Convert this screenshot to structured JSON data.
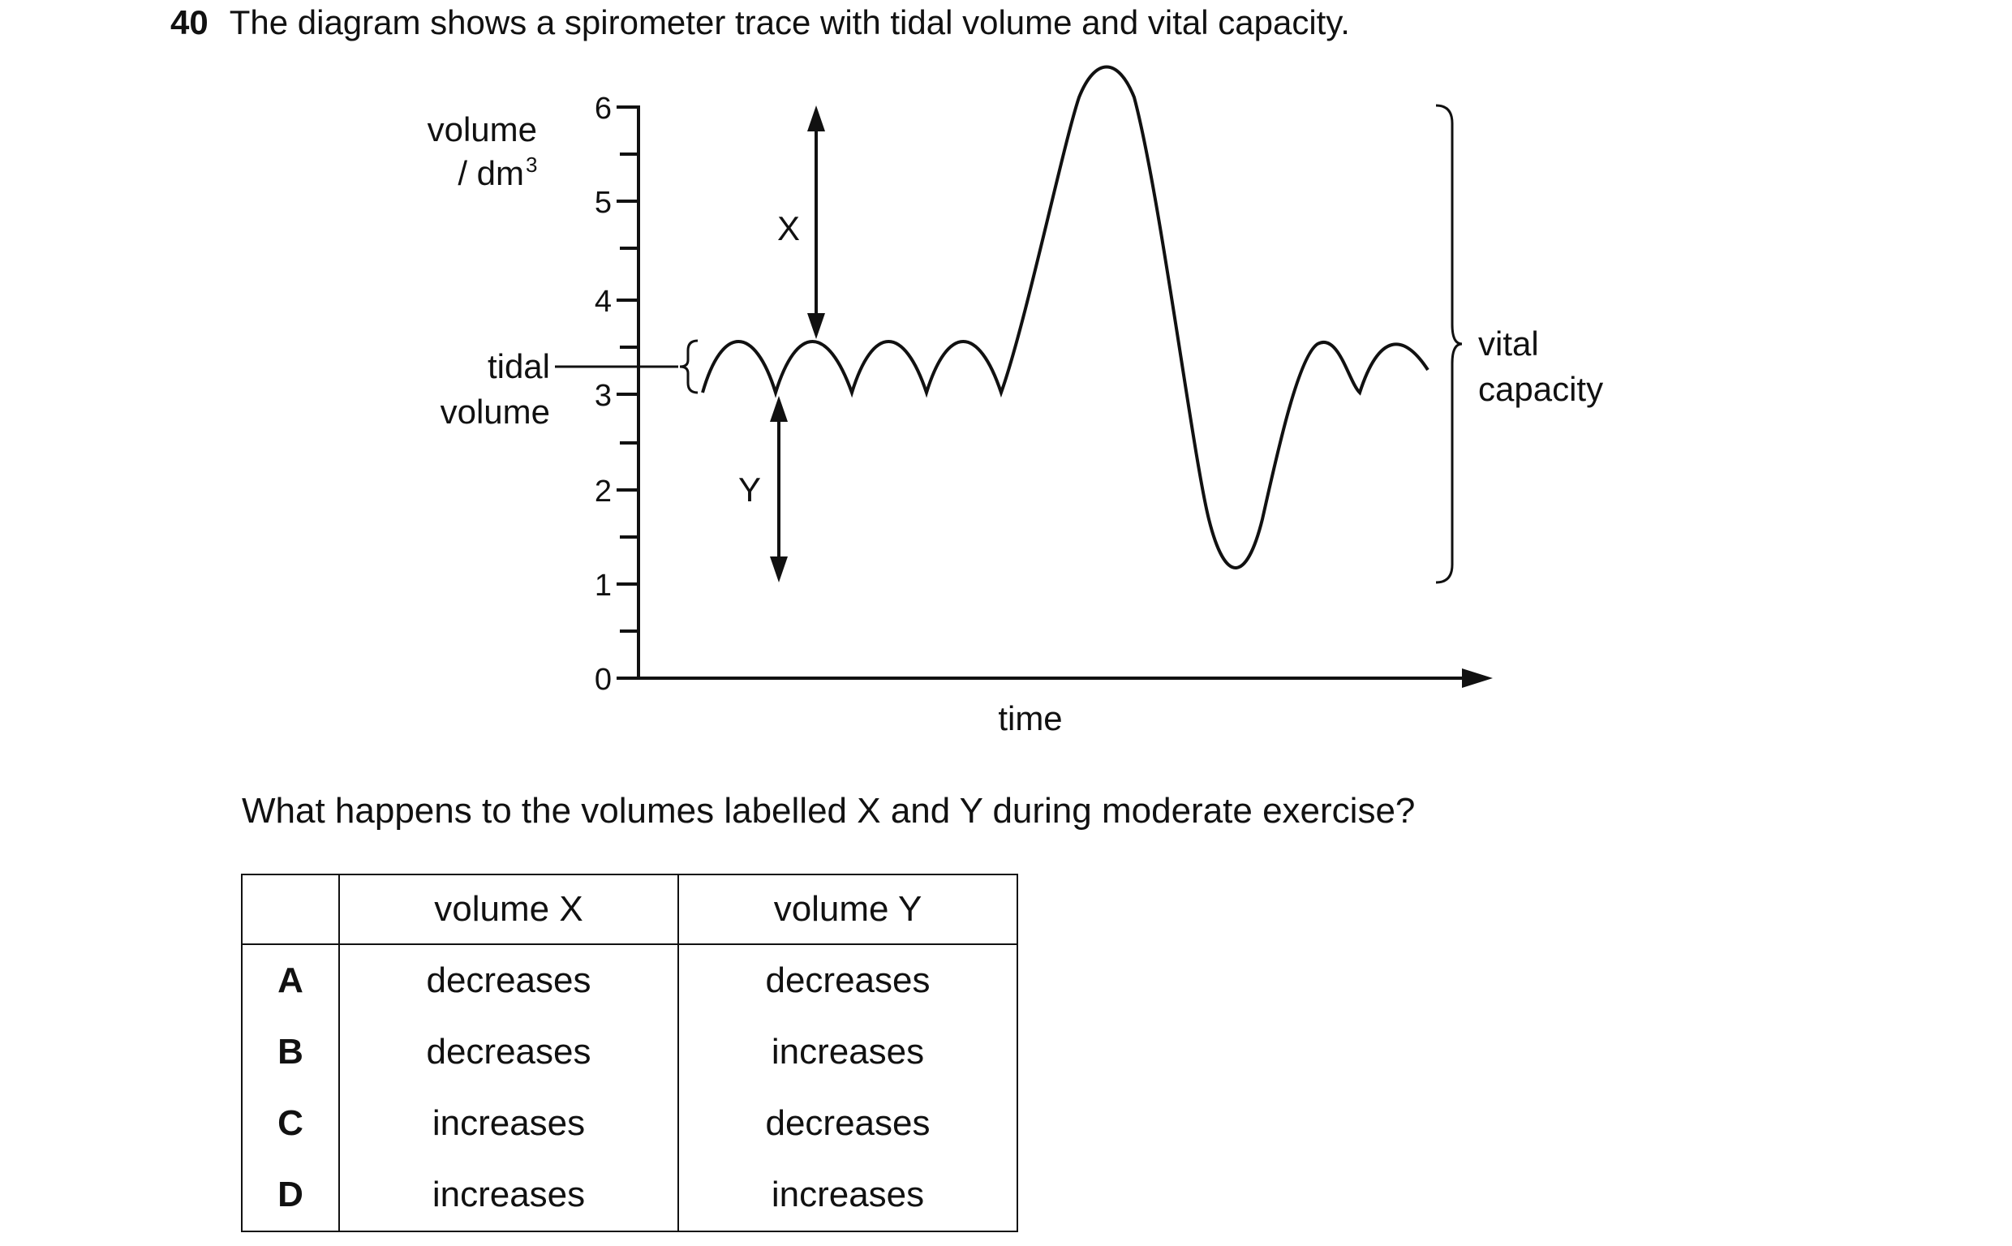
{
  "question": {
    "number": "40",
    "text": "The diagram shows a spirometer trace with tidal volume and vital capacity.",
    "prompt": "What happens to the volumes labelled X and Y during moderate exercise?"
  },
  "diagram": {
    "y_axis_label_line1": "volume",
    "y_axis_label_line2": "/ dm",
    "y_axis_label_sup": "3",
    "y_ticks": [
      "0",
      "1",
      "2",
      "3",
      "4",
      "5",
      "6"
    ],
    "x_axis_label": "time",
    "tidal_label_line1": "tidal",
    "tidal_label_line2": "volume",
    "vital_label_line1": "vital",
    "vital_label_line2": "capacity",
    "label_x": "X",
    "label_y": "Y"
  },
  "table": {
    "headers": [
      "",
      "volume X",
      "volume Y"
    ],
    "rows": [
      {
        "key": "A",
        "x": "decreases",
        "y": "decreases"
      },
      {
        "key": "B",
        "x": "decreases",
        "y": "increases"
      },
      {
        "key": "C",
        "x": "increases",
        "y": "decreases"
      },
      {
        "key": "D",
        "x": "increases",
        "y": "increases"
      }
    ]
  }
}
